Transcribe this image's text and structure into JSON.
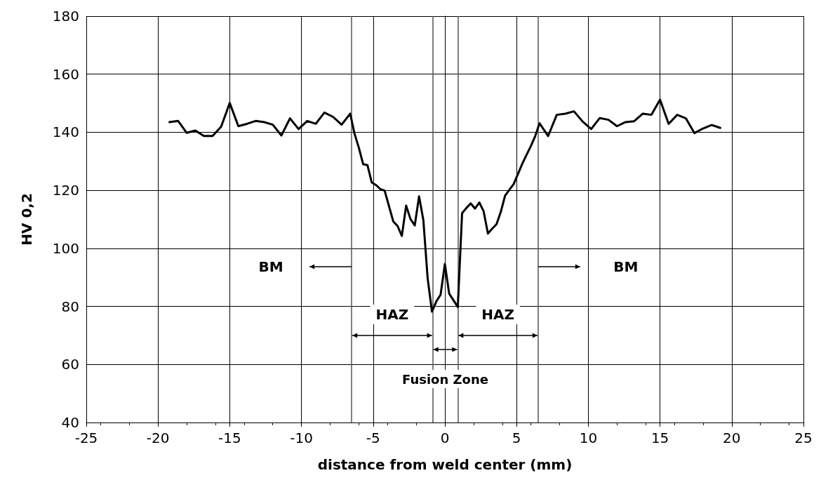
{
  "chart_data": {
    "type": "line",
    "xlabel": "distance from weld center (mm)",
    "ylabel": "HV 0,2",
    "x": [
      -19.2,
      -18.6,
      -18.0,
      -17.4,
      -16.8,
      -16.2,
      -15.6,
      -15.0,
      -14.4,
      -13.8,
      -13.2,
      -12.6,
      -12.0,
      -11.4,
      -10.8,
      -10.2,
      -9.6,
      -9.0,
      -8.4,
      -7.8,
      -7.2,
      -6.6,
      -6.3,
      -6.0,
      -5.7,
      -5.4,
      -5.1,
      -4.8,
      -4.5,
      -4.2,
      -3.9,
      -3.6,
      -3.3,
      -3.0,
      -2.7,
      -2.4,
      -2.1,
      -1.8,
      -1.5,
      -1.2,
      -0.9,
      -0.6,
      -0.3,
      0.0,
      0.3,
      0.9,
      1.2,
      1.5,
      1.8,
      2.1,
      2.4,
      2.7,
      3.0,
      3.3,
      3.6,
      3.9,
      4.2,
      4.5,
      4.8,
      5.1,
      5.4,
      5.7,
      6.0,
      6.3,
      6.6,
      7.2,
      7.8,
      8.4,
      9.0,
      9.6,
      10.2,
      10.8,
      11.4,
      12.0,
      12.6,
      13.2,
      13.8,
      14.4,
      15.0,
      15.6,
      16.2,
      16.8,
      17.4,
      18.0,
      18.6,
      19.2
    ],
    "values": [
      143.5,
      143.9,
      139.8,
      140.6,
      138.7,
      138.7,
      141.9,
      150.1,
      142.1,
      142.9,
      143.9,
      143.5,
      142.6,
      138.9,
      144.8,
      141.1,
      143.9,
      142.9,
      146.8,
      145.3,
      142.6,
      146.4,
      139.5,
      134.7,
      129.0,
      128.7,
      122.7,
      121.8,
      120.4,
      119.9,
      114.6,
      109.3,
      107.7,
      104.3,
      114.7,
      110.1,
      107.9,
      117.9,
      109.7,
      89.6,
      78.2,
      81.7,
      84.0,
      94.6,
      84.4,
      79.8,
      112.1,
      113.9,
      115.5,
      113.7,
      115.8,
      112.8,
      105.1,
      106.8,
      108.3,
      112.6,
      118.2,
      120.2,
      122.2,
      125.7,
      129.2,
      132.3,
      135.3,
      138.7,
      143.1,
      138.7,
      146.0,
      146.4,
      147.2,
      143.7,
      141.1,
      144.9,
      144.3,
      142.1,
      143.5,
      143.8,
      146.4,
      146.0,
      151.2,
      142.9,
      146.0,
      144.8,
      139.7,
      141.3,
      142.5,
      141.5
    ],
    "color": "#000000",
    "marker": "none",
    "line_style": "solid",
    "xlim": [
      -25,
      25
    ],
    "xticks": [
      -25,
      -20,
      -15,
      -10,
      -5,
      0,
      5,
      10,
      15,
      20,
      25
    ],
    "ylim": [
      40,
      180
    ],
    "yticks": [
      40,
      60,
      80,
      100,
      120,
      140,
      160,
      180
    ],
    "grid": true,
    "ref_lines": [
      {
        "axis": "x",
        "value": -6.5
      },
      {
        "axis": "x",
        "value": -0.85
      },
      {
        "axis": "x",
        "value": 0.9
      },
      {
        "axis": "x",
        "value": 6.5
      }
    ],
    "annotations": [
      "BM",
      "HAZ",
      "Fusion Zone",
      "HAZ",
      "BM"
    ]
  }
}
